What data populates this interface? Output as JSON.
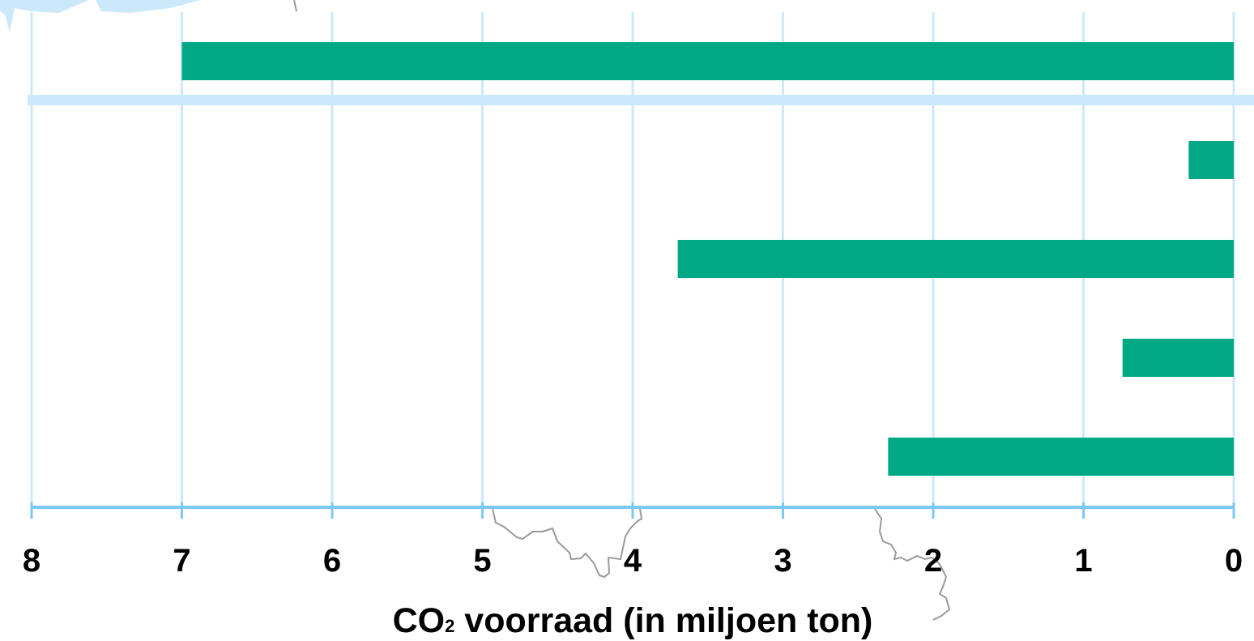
{
  "chart_data": {
    "type": "bar",
    "orientation": "horizontal",
    "x_axis_reversed": true,
    "categories": [
      "",
      "",
      "",
      "",
      ""
    ],
    "values": [
      7.0,
      0.3,
      3.7,
      0.74,
      2.3
    ],
    "title": "",
    "xlabel": "CO₂ voorraad (in miljoen ton)",
    "xlabel_main": "CO",
    "xlabel_sub": "2",
    "xlabel_rest": " voorraad (in miljoen ton)",
    "ylabel": "",
    "xlim": [
      0,
      8
    ],
    "xticks": [
      "8",
      "7",
      "6",
      "5",
      "4",
      "3",
      "2",
      "1",
      "0"
    ],
    "grid": "vertical",
    "colors": {
      "bar": "#00a885",
      "grid": "#cce9fb",
      "axis": "#7cc8f5",
      "separator": "#cce9fb",
      "map_land": "#cce9fb",
      "map_border": "#9a9a9a"
    }
  }
}
